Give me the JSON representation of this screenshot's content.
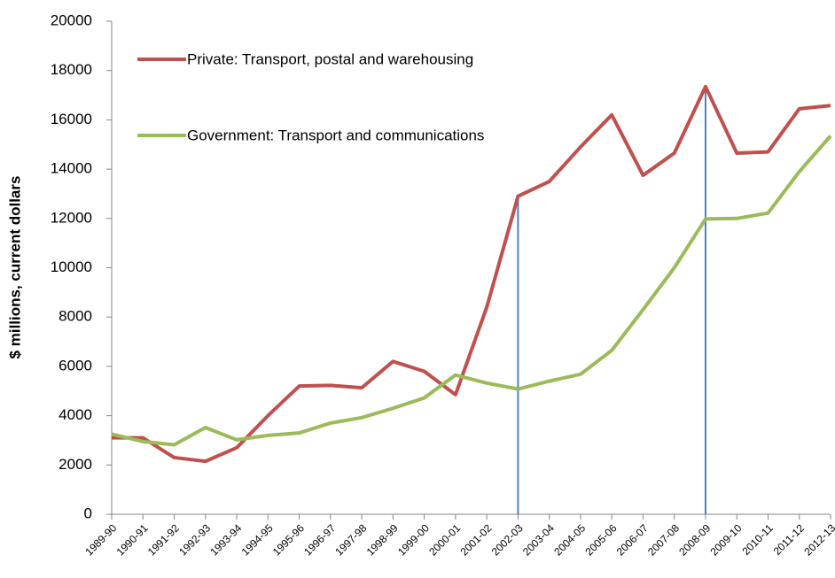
{
  "chart_data": {
    "type": "line",
    "y_label": "$ millions, current dollars",
    "categories": [
      "1989-90",
      "1990-91",
      "1991-92",
      "1992-93",
      "1993-94",
      "1994-95",
      "1995-96",
      "1996-97",
      "1997-98",
      "1998-99",
      "1999-00",
      "2000-01",
      "2001-02",
      "2002-03",
      "2003-04",
      "2004-05",
      "2005-06",
      "2006-07",
      "2007-08",
      "2008-09",
      "2009-10",
      "2010-11",
      "2011-12",
      "2012-13"
    ],
    "series": [
      {
        "name": "Private: Transport, postal and warehousing",
        "color": "#c0504d",
        "values": [
          3100,
          3100,
          2300,
          2150,
          2700,
          4000,
          5200,
          5230,
          5130,
          6200,
          5800,
          4850,
          8400,
          12900,
          13500,
          14900,
          16200,
          13750,
          14650,
          17350,
          14650,
          14700,
          16450,
          16580
        ]
      },
      {
        "name": "Government: Transport and communications",
        "color": "#9bbb59",
        "values": [
          3250,
          2950,
          2820,
          3520,
          3020,
          3200,
          3300,
          3700,
          3920,
          4300,
          4720,
          5650,
          5320,
          5080,
          5400,
          5680,
          6650,
          8300,
          10000,
          11980,
          12000,
          12220,
          13900,
          15350
        ]
      }
    ],
    "vertical_line_indices": [
      13,
      19
    ],
    "vertical_line_color": "#4f81bd",
    "ylim": [
      0,
      20000
    ],
    "yticks": [
      0,
      2000,
      4000,
      6000,
      8000,
      10000,
      12000,
      14000,
      16000,
      18000,
      20000
    ]
  }
}
